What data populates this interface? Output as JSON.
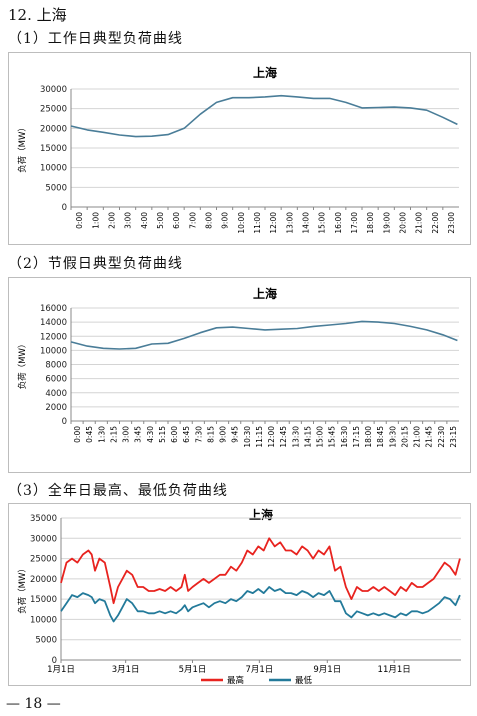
{
  "heading": "12. 上海",
  "sections": [
    {
      "label": "（1）工作日典型负荷曲线"
    },
    {
      "label": "（2）节假日典型负荷曲线"
    },
    {
      "label": "（3）全年日最高、最低负荷曲线"
    }
  ],
  "page_number": "— 18 —",
  "chart_data": [
    {
      "type": "line",
      "title": "上海",
      "ylabel": "负荷（MW）",
      "xlabel": "",
      "ylim": [
        0,
        30000
      ],
      "yticks": [
        0,
        5000,
        10000,
        15000,
        20000,
        25000,
        30000
      ],
      "xticks": [
        "0:00",
        "1:00",
        "2:00",
        "3:00",
        "4:00",
        "5:00",
        "6:00",
        "7:00",
        "8:00",
        "9:00",
        "10:00",
        "11:00",
        "12:00",
        "13:00",
        "14:00",
        "15:00",
        "16:00",
        "17:00",
        "18:00",
        "19:00",
        "20:00",
        "21:00",
        "22:00",
        "23:00"
      ],
      "grid": true,
      "color": "#4a7d98",
      "series": [
        {
          "x": [
            0,
            1,
            2,
            3,
            4,
            5,
            6,
            7,
            8,
            9,
            10,
            11,
            12,
            13,
            14,
            15,
            16,
            17,
            18,
            19,
            20,
            21,
            22,
            23,
            23.9
          ],
          "values": [
            20600,
            19600,
            19000,
            18300,
            17900,
            18000,
            18400,
            20000,
            23600,
            26600,
            27800,
            27800,
            28000,
            28300,
            28000,
            27600,
            27600,
            26600,
            25200,
            25300,
            25400,
            25200,
            24600,
            22800,
            21000
          ]
        }
      ]
    },
    {
      "type": "line",
      "title": "上海",
      "ylabel": "负荷（MW）",
      "xlabel": "",
      "ylim": [
        0,
        16000
      ],
      "yticks": [
        0,
        2000,
        4000,
        6000,
        8000,
        10000,
        12000,
        14000,
        16000
      ],
      "xticks": [
        "0:00",
        "0:45",
        "1:30",
        "2:15",
        "3:00",
        "3:45",
        "4:30",
        "5:15",
        "6:00",
        "6:45",
        "7:30",
        "8:15",
        "9:00",
        "9:45",
        "10:30",
        "11:15",
        "12:00",
        "12:45",
        "13:30",
        "14:15",
        "15:00",
        "15:45",
        "16:30",
        "17:15",
        "18:00",
        "18:45",
        "19:30",
        "20:15",
        "21:00",
        "21:45",
        "22:30",
        "23:15"
      ],
      "grid": true,
      "color": "#4a7d98",
      "series": [
        {
          "x": [
            0,
            1,
            2,
            3,
            4,
            5,
            6,
            7,
            8,
            9,
            10,
            11,
            12,
            13,
            14,
            15,
            16,
            17,
            18,
            19,
            20,
            21,
            22,
            23,
            23.9
          ],
          "values": [
            11200,
            10600,
            10300,
            10200,
            10300,
            10900,
            11000,
            11700,
            12500,
            13200,
            13300,
            13100,
            12900,
            13000,
            13100,
            13400,
            13600,
            13800,
            14100,
            14000,
            13800,
            13400,
            12900,
            12200,
            11400
          ]
        }
      ]
    },
    {
      "type": "line",
      "title": "上海",
      "ylabel": "负荷（MW）",
      "xlabel": "",
      "ylim": [
        0,
        35000
      ],
      "yticks": [
        0,
        5000,
        10000,
        15000,
        20000,
        25000,
        30000,
        35000
      ],
      "xticks": [
        "1月1日",
        "3月1日",
        "5月1日",
        "7月1日",
        "9月1日",
        "11月1日"
      ],
      "xtick_days": [
        0,
        59,
        120,
        181,
        243,
        304
      ],
      "grid": true,
      "legend": "bottom",
      "series": [
        {
          "name": "最高",
          "color": "#e8231f",
          "x": [
            0,
            5,
            10,
            15,
            20,
            25,
            28,
            31,
            35,
            40,
            45,
            48,
            52,
            56,
            60,
            65,
            70,
            75,
            80,
            85,
            90,
            95,
            100,
            105,
            110,
            113,
            116,
            120,
            125,
            130,
            135,
            140,
            145,
            150,
            155,
            160,
            165,
            170,
            175,
            180,
            185,
            190,
            195,
            200,
            205,
            210,
            215,
            220,
            225,
            230,
            235,
            240,
            245,
            250,
            255,
            260,
            265,
            270,
            275,
            280,
            285,
            290,
            295,
            300,
            305,
            310,
            315,
            320,
            325,
            330,
            335,
            340,
            345,
            350,
            355,
            360,
            364
          ],
          "values": [
            19000,
            24000,
            25000,
            24000,
            26000,
            27000,
            26000,
            22000,
            25000,
            24000,
            18000,
            14000,
            18000,
            20000,
            22000,
            21000,
            18000,
            18000,
            17000,
            17000,
            17500,
            17000,
            18000,
            17000,
            18000,
            21000,
            17000,
            18000,
            19000,
            20000,
            19000,
            20000,
            21000,
            21000,
            23000,
            22000,
            24000,
            27000,
            26000,
            28000,
            27000,
            30000,
            28000,
            29000,
            27000,
            27000,
            26000,
            28000,
            27000,
            25000,
            27000,
            26000,
            28000,
            22000,
            23000,
            18000,
            15000,
            18000,
            17000,
            17000,
            18000,
            17000,
            18000,
            17000,
            16000,
            18000,
            17000,
            19000,
            18000,
            18000,
            19000,
            20000,
            22000,
            24000,
            23000,
            21000,
            25000
          ]
        },
        {
          "name": "最低",
          "color": "#237a9a",
          "x": [
            0,
            5,
            10,
            15,
            20,
            25,
            28,
            31,
            35,
            40,
            45,
            48,
            52,
            56,
            60,
            65,
            70,
            75,
            80,
            85,
            90,
            95,
            100,
            105,
            110,
            113,
            116,
            120,
            125,
            130,
            135,
            140,
            145,
            150,
            155,
            160,
            165,
            170,
            175,
            180,
            185,
            190,
            195,
            200,
            205,
            210,
            215,
            220,
            225,
            230,
            235,
            240,
            245,
            250,
            255,
            260,
            265,
            270,
            275,
            280,
            285,
            290,
            295,
            300,
            305,
            310,
            315,
            320,
            325,
            330,
            335,
            340,
            345,
            350,
            355,
            360,
            364
          ],
          "values": [
            12000,
            14000,
            16000,
            15500,
            16500,
            16000,
            15500,
            14000,
            15000,
            14500,
            11000,
            9500,
            11000,
            13000,
            15000,
            14000,
            12000,
            12000,
            11500,
            11500,
            12000,
            11500,
            12000,
            11500,
            12500,
            13500,
            12000,
            13000,
            13500,
            14000,
            13000,
            14000,
            14500,
            14000,
            15000,
            14500,
            15500,
            17000,
            16500,
            17500,
            16500,
            18000,
            17000,
            17500,
            16500,
            16500,
            16000,
            17000,
            16500,
            15500,
            16500,
            16000,
            17000,
            14500,
            14500,
            11500,
            10500,
            12000,
            11500,
            11000,
            11500,
            11000,
            11500,
            11000,
            10500,
            11500,
            11000,
            12000,
            12000,
            11500,
            12000,
            13000,
            14000,
            15500,
            15000,
            13500,
            16000
          ]
        }
      ]
    }
  ]
}
